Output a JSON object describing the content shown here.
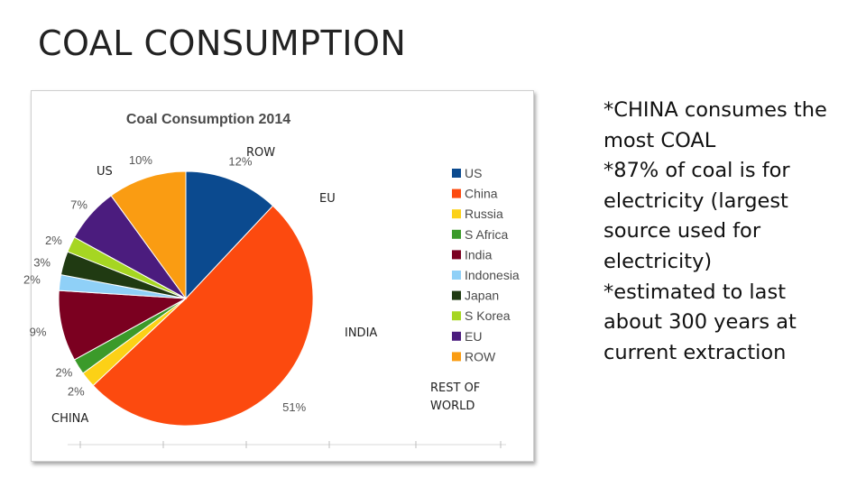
{
  "slide": {
    "title": "COAL CONSUMPTION"
  },
  "notes": [
    "*CHINA consumes the",
    "most COAL",
    "*87% of coal is for",
    "electricity (largest",
    "source used for",
    "electricity)",
    "*estimated to last",
    "about 300 years at",
    "current extraction"
  ],
  "overlay_labels": {
    "us": "US",
    "row": "ROW",
    "eu": "EU",
    "india": "INDIA",
    "rest_of_world": [
      "REST OF",
      "WORLD"
    ],
    "china": "CHINA"
  },
  "chart_data": {
    "type": "pie",
    "title": "Coal Consumption 2014",
    "legend_position": "right",
    "slices": [
      {
        "name": "US",
        "value": 12,
        "label": "12%",
        "color": "#0b4a8f"
      },
      {
        "name": "China",
        "value": 51,
        "label": "51%",
        "color": "#fc4a0f"
      },
      {
        "name": "Russia",
        "value": 2,
        "label": "2%",
        "color": "#fcd116"
      },
      {
        "name": "S Africa",
        "value": 2,
        "label": "2%",
        "color": "#3b9a2a"
      },
      {
        "name": "India",
        "value": 9,
        "label": "9%",
        "color": "#7b0020"
      },
      {
        "name": "Indonesia",
        "value": 2,
        "label": "2%",
        "color": "#8fd0f7"
      },
      {
        "name": "Japan",
        "value": 3,
        "label": "3%",
        "color": "#203a12"
      },
      {
        "name": "S Korea",
        "value": 2,
        "label": "2%",
        "color": "#a6d622"
      },
      {
        "name": "EU",
        "value": 7,
        "label": "7%",
        "color": "#4b1c7e"
      },
      {
        "name": "ROW",
        "value": 10,
        "label": "10%",
        "color": "#fa9c12"
      }
    ]
  }
}
